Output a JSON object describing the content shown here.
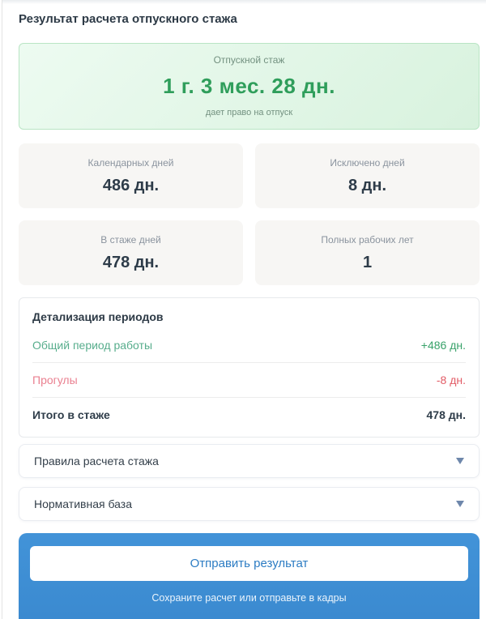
{
  "page": {
    "title": "Результат расчета отпускного стажа"
  },
  "summary": {
    "label": "Отпускной стаж",
    "value": "1 г. 3 мес. 28 дн.",
    "note": "дает право на отпуск"
  },
  "stats": [
    {
      "label": "Календарных дней",
      "value": "486 дн."
    },
    {
      "label": "Исключено дней",
      "value": "8 дн."
    },
    {
      "label": "В стаже дней",
      "value": "478 дн."
    },
    {
      "label": "Полных рабочих лет",
      "value": "1"
    }
  ],
  "details": {
    "title": "Детализация периодов",
    "rows": [
      {
        "label": "Общий период работы",
        "value": "+486 дн.",
        "type": "positive"
      },
      {
        "label": "Прогулы",
        "value": "-8 дн.",
        "type": "negative"
      },
      {
        "label": "Итого в стаже",
        "value": "478 дн.",
        "type": "total"
      }
    ]
  },
  "accordions": [
    {
      "label": "Правила расчета стажа",
      "icon": "chevron-down-icon"
    },
    {
      "label": "Нормативная база",
      "icon": "chevron-down-icon"
    }
  ],
  "footer": {
    "button_label": "Отправить результат",
    "note": "Сохраните расчет или отправьте в кадры"
  },
  "colors": {
    "success_green": "#2f9e5b",
    "muted_green": "#739180",
    "summary_bg_start": "#edfbf1",
    "summary_bg_end": "#d8f2de",
    "summary_border": "#b9e5c4",
    "card_bg": "#f7f6f4",
    "value_dark": "#2e3c49",
    "positive_text": "#39a26a",
    "negative_text": "#e25c66",
    "accent_blue": "#3e8ed3",
    "button_text_blue": "#2c7cc3",
    "caret_blue_gray": "#6e87ab"
  }
}
